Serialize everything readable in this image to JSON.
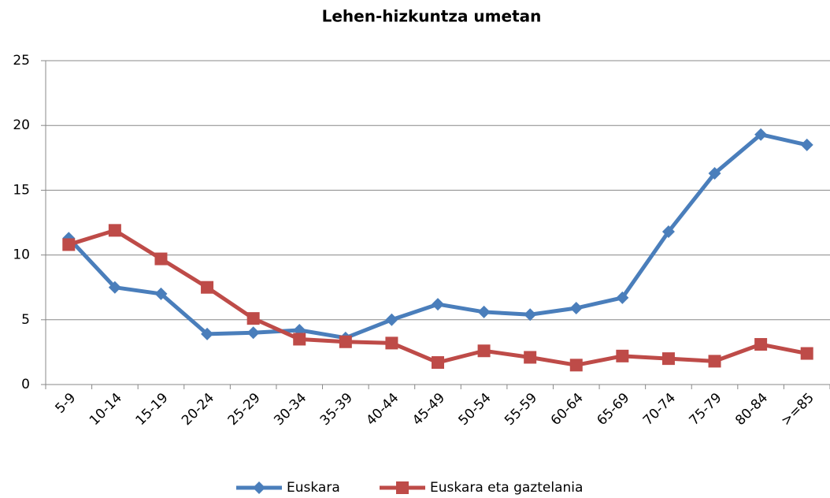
{
  "chart_data": {
    "type": "line",
    "title": "Lehen-hizkuntza umetan",
    "categories": [
      "5-9",
      "10-14",
      "15-19",
      "20-24",
      "25-29",
      "30-34",
      "35-39",
      "40-44",
      "45-49",
      "50-54",
      "55-59",
      "60-64",
      "65-69",
      "70-74",
      "75-79",
      "80-84",
      ">=85"
    ],
    "series": [
      {
        "name": "Euskara",
        "color": "#4a7ebb",
        "marker": "diamond",
        "values": [
          11.3,
          7.5,
          7.0,
          3.9,
          4.0,
          4.2,
          3.6,
          5.0,
          6.2,
          5.6,
          5.4,
          5.9,
          6.7,
          11.8,
          16.3,
          19.3,
          18.5
        ]
      },
      {
        "name": "Euskara eta gaztelania",
        "color": "#be4b48",
        "marker": "square",
        "values": [
          10.8,
          11.9,
          9.7,
          7.5,
          5.1,
          3.5,
          3.3,
          3.2,
          1.7,
          2.6,
          2.1,
          1.5,
          2.2,
          2.0,
          1.8,
          3.1,
          2.4
        ]
      }
    ],
    "ylim": [
      0,
      25
    ],
    "yticks": [
      0,
      5,
      10,
      15,
      20,
      25
    ],
    "grid": true,
    "legend": "bottom"
  }
}
